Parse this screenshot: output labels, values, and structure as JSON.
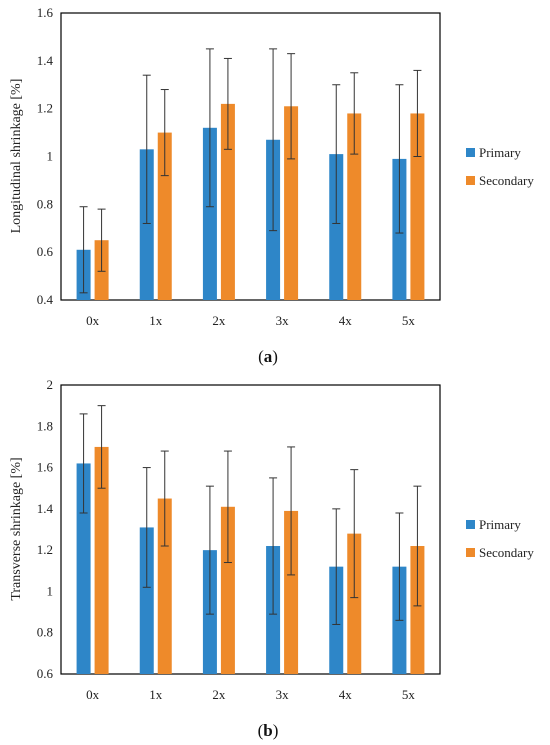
{
  "chart_data": [
    {
      "type": "bar",
      "categories": [
        "0x",
        "1x",
        "2x",
        "3x",
        "4x",
        "5x"
      ],
      "ylabel": "Longitudinal shrinkage [%]",
      "ylim": [
        0.4,
        1.6
      ],
      "yticks": [
        "0.4",
        "0.6",
        "0.8",
        "1",
        "1.2",
        "1.4",
        "1.6"
      ],
      "legend_position": "right",
      "caption": "(a)",
      "caption_letter": "a",
      "series": [
        {
          "name": "Primary",
          "values": [
            0.61,
            1.03,
            1.12,
            1.07,
            1.01,
            0.99
          ],
          "errors": [
            0.18,
            0.31,
            0.33,
            0.38,
            0.29,
            0.31
          ]
        },
        {
          "name": "Secondary",
          "values": [
            0.65,
            1.1,
            1.22,
            1.21,
            1.18,
            1.18
          ],
          "errors": [
            0.13,
            0.18,
            0.19,
            0.22,
            0.17,
            0.18
          ]
        }
      ]
    },
    {
      "type": "bar",
      "categories": [
        "0x",
        "1x",
        "2x",
        "3x",
        "4x",
        "5x"
      ],
      "ylabel": "Transverse shrinkage [%]",
      "ylim": [
        0.6,
        2.0
      ],
      "yticks": [
        "0.6",
        "0.8",
        "1",
        "1.2",
        "1.4",
        "1.6",
        "1.8",
        "2"
      ],
      "legend_position": "right",
      "caption": "(b)",
      "caption_letter": "b",
      "series": [
        {
          "name": "Primary",
          "values": [
            1.62,
            1.31,
            1.2,
            1.22,
            1.12,
            1.12
          ],
          "errors": [
            0.24,
            0.29,
            0.31,
            0.33,
            0.28,
            0.26
          ]
        },
        {
          "name": "Secondary",
          "values": [
            1.7,
            1.45,
            1.41,
            1.39,
            1.28,
            1.22
          ],
          "errors": [
            0.2,
            0.23,
            0.27,
            0.31,
            0.31,
            0.29
          ]
        }
      ]
    }
  ],
  "colors": {
    "primary": "#2e86c8",
    "secondary": "#ee8a2a",
    "axis": "#000000",
    "errorbar": "#333333"
  }
}
